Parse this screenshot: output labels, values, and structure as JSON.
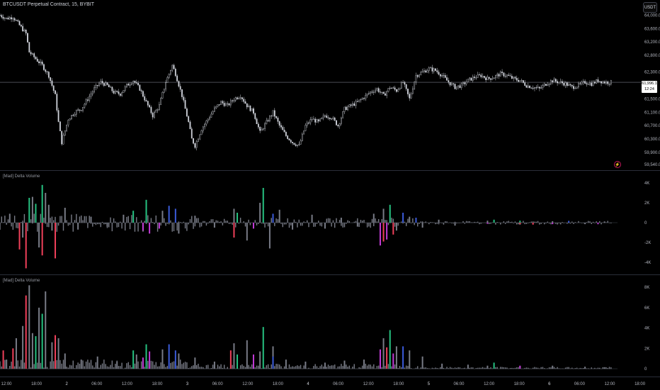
{
  "header": {
    "symbol_title": "BTCUSDT Perpetual Contract, 15, BYBIT",
    "currency_button": "USDT"
  },
  "last_price": {
    "value": "61,996.1",
    "countdown": "12:24"
  },
  "indicator_labels": [
    "[Mad] Delta Volume",
    "[Mad] Delta Volume"
  ],
  "colors": {
    "background": "#000000",
    "candle": "#d1d4dc",
    "grey_bar": "#787b86",
    "green": "#26c281",
    "red": "#f0405a",
    "blue": "#3b5bdb",
    "magenta": "#c13ad6",
    "grid": "#2a2e39"
  },
  "chart_data": [
    {
      "type": "candlestick",
      "title": "BTCUSDT Perpetual Contract, 15, BYBIT",
      "ylim": [
        59540,
        64200
      ],
      "y_ticks": [
        "64,000.0",
        "63,600.0",
        "63,200.0",
        "62,800.0",
        "62,300.0",
        "61,996.1",
        "61,500.0",
        "61,100.0",
        "60,700.0",
        "60,300.0",
        "59,900.0",
        "59,540.0"
      ],
      "x_ticks": [
        "12:00",
        "18:00",
        "2",
        "06:00",
        "12:00",
        "18:00",
        "3",
        "06:00",
        "12:00",
        "18:00",
        "4",
        "06:00",
        "12:00",
        "18:00",
        "5",
        "06:00",
        "12:00",
        "18:00",
        "6",
        "06:00",
        "12:00",
        "18:00"
      ],
      "close_path": [
        [
          0,
          64000
        ],
        [
          2,
          63900
        ],
        [
          4,
          63950
        ],
        [
          6,
          63700
        ],
        [
          8,
          63450
        ],
        [
          9,
          62900
        ],
        [
          11,
          62700
        ],
        [
          13,
          62500
        ],
        [
          15,
          62200
        ],
        [
          17,
          61600
        ],
        [
          18,
          60800
        ],
        [
          19,
          60200
        ],
        [
          21,
          60900
        ],
        [
          23,
          61100
        ],
        [
          25,
          61200
        ],
        [
          27,
          61500
        ],
        [
          29,
          61800
        ],
        [
          31,
          62000
        ],
        [
          33,
          61900
        ],
        [
          35,
          61700
        ],
        [
          37,
          61650
        ],
        [
          39,
          61900
        ],
        [
          41,
          62050
        ],
        [
          43,
          61800
        ],
        [
          45,
          61400
        ],
        [
          47,
          61000
        ],
        [
          49,
          61300
        ],
        [
          51,
          62000
        ],
        [
          53,
          62500
        ],
        [
          54,
          62250
        ],
        [
          56,
          61600
        ],
        [
          58,
          60800
        ],
        [
          59,
          60300
        ],
        [
          60,
          60100
        ],
        [
          62,
          60600
        ],
        [
          64,
          60900
        ],
        [
          66,
          61200
        ],
        [
          68,
          61400
        ],
        [
          70,
          61300
        ],
        [
          72,
          61500
        ],
        [
          74,
          61600
        ],
        [
          76,
          61300
        ],
        [
          78,
          61100
        ],
        [
          80,
          60500
        ],
        [
          82,
          60800
        ],
        [
          84,
          61100
        ],
        [
          86,
          60700
        ],
        [
          88,
          60400
        ],
        [
          90,
          60200
        ],
        [
          92,
          60100
        ],
        [
          94,
          60700
        ],
        [
          96,
          60900
        ],
        [
          98,
          60800
        ],
        [
          100,
          61000
        ],
        [
          102,
          60950
        ],
        [
          104,
          60700
        ],
        [
          106,
          61200
        ],
        [
          108,
          61300
        ],
        [
          110,
          61400
        ],
        [
          112,
          61550
        ],
        [
          114,
          61700
        ],
        [
          116,
          61800
        ],
        [
          118,
          61600
        ],
        [
          120,
          61850
        ],
        [
          122,
          61750
        ],
        [
          124,
          62000
        ],
        [
          126,
          61500
        ],
        [
          128,
          62200
        ],
        [
          130,
          62300
        ],
        [
          132,
          62400
        ],
        [
          134,
          62350
        ],
        [
          136,
          62200
        ],
        [
          138,
          62000
        ],
        [
          140,
          61850
        ],
        [
          142,
          61900
        ],
        [
          144,
          62050
        ],
        [
          146,
          62150
        ],
        [
          148,
          62200
        ],
        [
          150,
          62100
        ],
        [
          152,
          62150
        ],
        [
          154,
          62250
        ],
        [
          156,
          62200
        ],
        [
          158,
          62100
        ],
        [
          160,
          62050
        ],
        [
          162,
          61900
        ],
        [
          164,
          61850
        ],
        [
          166,
          61800
        ],
        [
          168,
          61950
        ],
        [
          170,
          62050
        ],
        [
          172,
          62000
        ],
        [
          174,
          61950
        ],
        [
          176,
          61850
        ],
        [
          178,
          61900
        ],
        [
          180,
          62000
        ],
        [
          182,
          61950
        ],
        [
          184,
          62050
        ],
        [
          186,
          62000
        ],
        [
          188,
          61996
        ]
      ],
      "x_domain": [
        0,
        190
      ]
    },
    {
      "type": "bar",
      "title": "[Mad] Delta Volume",
      "ylim": [
        -4500,
        4500
      ],
      "y_ticks": [
        "4K",
        "2K",
        "0",
        "-2K",
        "-4K"
      ],
      "tick_values": [
        4000,
        2000,
        0,
        -2000,
        -4000
      ],
      "series": [
        {
          "color_key": "grey_bar",
          "description": "neutral delta",
          "points": [
            [
              3,
              900
            ],
            [
              7,
              -1500
            ],
            [
              10,
              2600
            ],
            [
              12,
              -2500
            ],
            [
              14,
              3000
            ],
            [
              15,
              1800
            ],
            [
              16,
              -800
            ],
            [
              20,
              1500
            ],
            [
              24,
              -700
            ],
            [
              28,
              600
            ],
            [
              33,
              -400
            ],
            [
              38,
              800
            ],
            [
              44,
              -900
            ],
            [
              50,
              1200
            ],
            [
              55,
              -1100
            ],
            [
              60,
              700
            ],
            [
              66,
              -500
            ],
            [
              72,
              1400
            ],
            [
              76,
              -1800
            ],
            [
              80,
              2000
            ],
            [
              83,
              -2600
            ],
            [
              86,
              1300
            ],
            [
              90,
              -700
            ],
            [
              96,
              800
            ],
            [
              100,
              -600
            ],
            [
              105,
              500
            ],
            [
              110,
              -400
            ],
            [
              115,
              900
            ],
            [
              118,
              1400
            ],
            [
              122,
              -800
            ],
            [
              126,
              600
            ],
            [
              130,
              -500
            ],
            [
              135,
              300
            ],
            [
              140,
              -300
            ],
            [
              150,
              200
            ],
            [
              160,
              -200
            ],
            [
              170,
              150
            ],
            [
              180,
              -150
            ],
            [
              186,
              120
            ]
          ]
        },
        {
          "color_key": "green",
          "description": "strong buy delta",
          "points": [
            [
              9,
              2500
            ],
            [
              11,
              1900
            ],
            [
              13,
              3800
            ],
            [
              41,
              1200
            ],
            [
              45,
              2300
            ],
            [
              73,
              1000
            ],
            [
              81,
              3500
            ],
            [
              120,
              1800
            ],
            [
              152,
              300
            ],
            [
              160,
              200
            ]
          ]
        },
        {
          "color_key": "red",
          "description": "strong sell delta",
          "points": [
            [
              6,
              -2700
            ],
            [
              8,
              -4600
            ],
            [
              13,
              -3300
            ],
            [
              17,
              -3600
            ],
            [
              72,
              -1500
            ],
            [
              118,
              -1900
            ],
            [
              121,
              -1200
            ],
            [
              160,
              -150
            ],
            [
              164,
              -200
            ]
          ]
        },
        {
          "color_key": "blue",
          "description": "absorption buy",
          "points": [
            [
              52,
              1700
            ],
            [
              54,
              1400
            ],
            [
              84,
              900
            ],
            [
              124,
              1000
            ],
            [
              128,
              500
            ],
            [
              175,
              180
            ]
          ]
        },
        {
          "color_key": "magenta",
          "description": "absorption sell",
          "points": [
            [
              44,
              -800
            ],
            [
              46,
              -1100
            ],
            [
              49,
              -600
            ],
            [
              78,
              -600
            ],
            [
              117,
              -2300
            ],
            [
              119,
              -1700
            ],
            [
              150,
              -120
            ],
            [
              170,
              -150
            ],
            [
              184,
              -160
            ]
          ]
        }
      ],
      "x_domain": [
        0,
        190
      ]
    },
    {
      "type": "bar",
      "title": "[Mad] Delta Volume",
      "ylim": [
        0,
        8500
      ],
      "y_ticks": [
        "8K",
        "6K",
        "4K",
        "2K",
        "0"
      ],
      "tick_values": [
        8000,
        6000,
        4000,
        2000,
        0
      ],
      "series": [
        {
          "color_key": "grey_bar",
          "description": "total volume",
          "points": [
            [
              2,
              900
            ],
            [
              5,
              3000
            ],
            [
              7,
              4200
            ],
            [
              9,
              8200
            ],
            [
              10,
              3500
            ],
            [
              12,
              6000
            ],
            [
              14,
              7600
            ],
            [
              16,
              2600
            ],
            [
              18,
              3000
            ],
            [
              20,
              1500
            ],
            [
              25,
              900
            ],
            [
              30,
              1200
            ],
            [
              36,
              700
            ],
            [
              42,
              1400
            ],
            [
              50,
              1900
            ],
            [
              55,
              1500
            ],
            [
              60,
              1100
            ],
            [
              66,
              700
            ],
            [
              72,
              2500
            ],
            [
              76,
              2800
            ],
            [
              80,
              1700
            ],
            [
              84,
              2200
            ],
            [
              88,
              900
            ],
            [
              94,
              700
            ],
            [
              100,
              600
            ],
            [
              106,
              800
            ],
            [
              112,
              900
            ],
            [
              118,
              3000
            ],
            [
              122,
              2200
            ],
            [
              126,
              1800
            ],
            [
              130,
              1200
            ],
            [
              136,
              500
            ],
            [
              144,
              400
            ],
            [
              150,
              300
            ],
            [
              160,
              250
            ],
            [
              170,
              300
            ],
            [
              180,
              200
            ],
            [
              186,
              150
            ]
          ]
        },
        {
          "color_key": "green",
          "description": "buy heavy volume",
          "points": [
            [
              11,
              3200
            ],
            [
              13,
              5400
            ],
            [
              41,
              1800
            ],
            [
              45,
              2400
            ],
            [
              73,
              1400
            ],
            [
              81,
              4100
            ],
            [
              120,
              3800
            ],
            [
              152,
              600
            ]
          ]
        },
        {
          "color_key": "red",
          "description": "sell heavy volume",
          "points": [
            [
              1,
              1800
            ],
            [
              4,
              2000
            ],
            [
              8,
              7200
            ],
            [
              17,
              3300
            ],
            [
              71,
              1800
            ],
            [
              119,
              2100
            ]
          ]
        },
        {
          "color_key": "blue",
          "description": "absorption buy volume",
          "points": [
            [
              52,
              2400
            ],
            [
              54,
              1800
            ],
            [
              84,
              1200
            ],
            [
              124,
              2200
            ]
          ]
        },
        {
          "color_key": "magenta",
          "description": "absorption sell volume",
          "points": [
            [
              44,
              1100
            ],
            [
              46,
              1700
            ],
            [
              78,
              1400
            ],
            [
              117,
              1900
            ],
            [
              121,
              1500
            ],
            [
              160,
              300
            ]
          ]
        }
      ],
      "x_domain": [
        0,
        190
      ]
    }
  ]
}
